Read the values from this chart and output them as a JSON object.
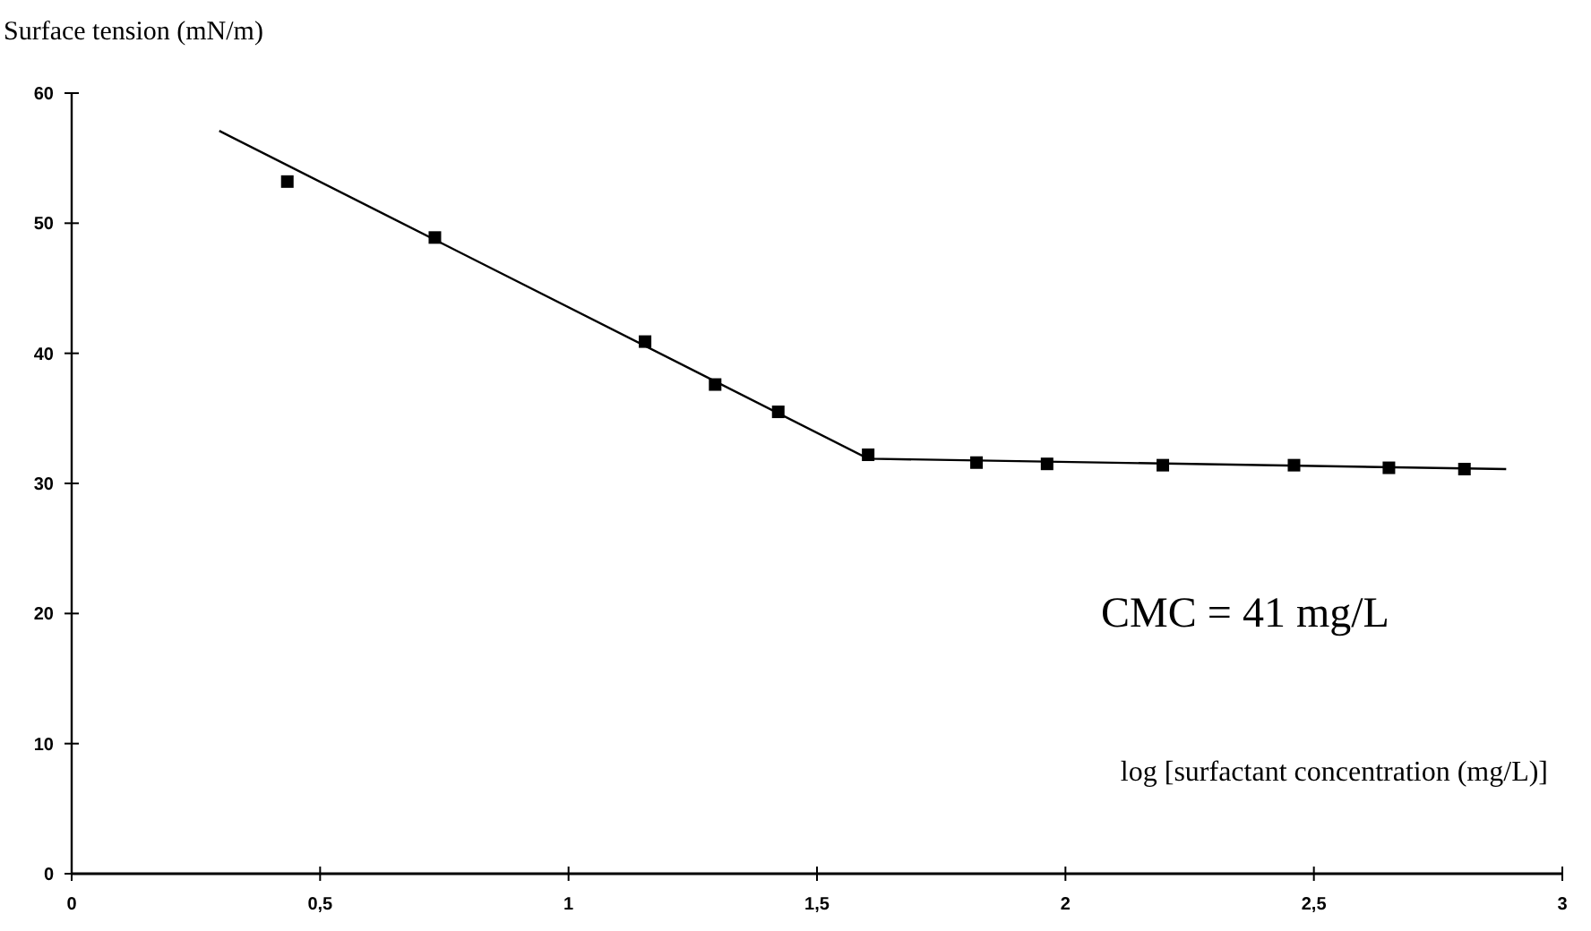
{
  "chart_data": {
    "type": "scatter",
    "ylabel": "Surface tension (mN/m)",
    "xlabel": "log [surfactant concentration (mg/L)]",
    "annotations": [
      "CMC = 41 mg/L"
    ],
    "xlim": [
      0,
      3
    ],
    "xticks": [
      0,
      {
        "value": 0.5,
        "label": "0,5"
      },
      1,
      {
        "value": 1.5,
        "label": "1,5"
      },
      2,
      {
        "value": 2.5,
        "label": "2,5"
      },
      3
    ],
    "ylim": [
      0,
      60
    ],
    "yticks": [
      0,
      10,
      20,
      30,
      40,
      50,
      60
    ],
    "grid": false,
    "series": [
      {
        "color": "#000000",
        "marker": "square",
        "x": [
          0.434,
          0.731,
          1.154,
          1.295,
          1.422,
          1.603,
          1.821,
          1.963,
          2.196,
          2.46,
          2.651,
          2.803
        ],
        "values": [
          53.2,
          48.9,
          40.9,
          37.6,
          35.5,
          32.2,
          31.6,
          31.5,
          31.4,
          31.4,
          31.2,
          31.1
        ]
      },
      {
        "type": "line",
        "color": "#000000",
        "marker": "none",
        "line_style": "solid",
        "x": [
          0.297,
          1.603,
          2.887
        ],
        "values": [
          57.1,
          31.9,
          31.1
        ]
      }
    ]
  }
}
